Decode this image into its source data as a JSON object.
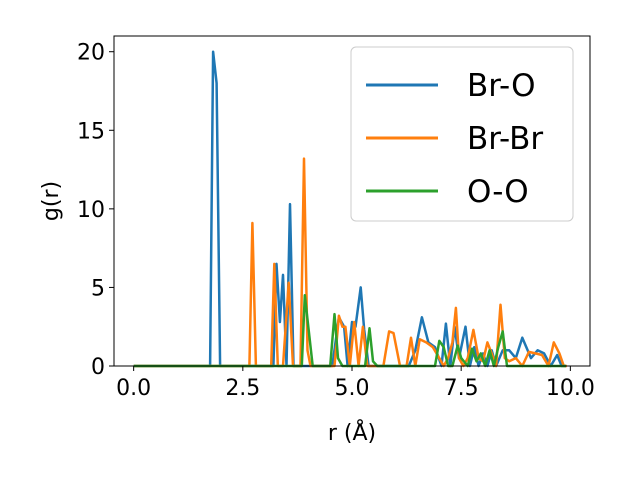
{
  "chart_data": {
    "type": "line",
    "xlabel": "r (Å)",
    "ylabel": "g(r)",
    "xlim": [
      -0.45,
      10.45
    ],
    "ylim": [
      0,
      21
    ],
    "xticks": [
      "0.0",
      "2.5",
      "5.0",
      "7.5",
      "10.0"
    ],
    "yticks": [
      "0",
      "5",
      "10",
      "15",
      "20"
    ],
    "grid": false,
    "legend_position": "top-right",
    "series": [
      {
        "name": "Br-O",
        "color": "#1f77b4",
        "x": [
          0.0,
          1.75,
          1.82,
          1.9,
          1.98,
          2.0,
          2.05,
          3.2,
          3.27,
          3.35,
          3.42,
          3.5,
          3.58,
          3.66,
          3.74,
          3.82,
          4.15,
          4.3,
          4.45,
          4.55,
          4.7,
          4.82,
          4.9,
          5.0,
          5.08,
          5.2,
          5.28,
          5.38,
          5.5,
          5.62,
          6.3,
          6.45,
          6.6,
          6.75,
          6.9,
          7.05,
          7.15,
          7.25,
          7.35,
          7.45,
          7.6,
          7.7,
          7.8,
          7.9,
          8.0,
          8.1,
          8.2,
          8.3,
          8.45,
          8.6,
          8.75,
          8.9,
          9.1,
          9.25,
          9.4,
          9.55,
          9.7,
          9.8,
          9.9
        ],
        "y": [
          0,
          0,
          20,
          18,
          0,
          0,
          0,
          0,
          6.5,
          2.8,
          5.8,
          0,
          10.3,
          0,
          0,
          0,
          0,
          0,
          0,
          0,
          3.1,
          2.5,
          0,
          2.8,
          2.5,
          5.0,
          2.3,
          0,
          0,
          0,
          0,
          1.0,
          3.1,
          1.5,
          1.2,
          0,
          2.7,
          0,
          2.5,
          0.5,
          2.5,
          0,
          1.2,
          0,
          0.8,
          0,
          1.0,
          0,
          1.0,
          1.0,
          0.5,
          1.8,
          0.5,
          1.0,
          0.8,
          0,
          0.7,
          0,
          0
        ]
      },
      {
        "name": "Br-Br",
        "color": "#ff7f0e",
        "x": [
          0.0,
          2.55,
          2.65,
          2.72,
          2.8,
          2.95,
          3.05,
          3.15,
          3.22,
          3.3,
          3.42,
          3.55,
          3.65,
          3.75,
          3.82,
          3.9,
          3.98,
          4.05,
          4.15,
          4.3,
          4.45,
          4.6,
          4.7,
          4.78,
          4.85,
          4.95,
          5.05,
          5.15,
          5.25,
          5.35,
          5.5,
          5.62,
          5.72,
          5.85,
          5.95,
          6.1,
          6.25,
          6.35,
          6.45,
          6.55,
          6.7,
          6.85,
          7.0,
          7.1,
          7.2,
          7.3,
          7.38,
          7.45,
          7.55,
          7.65,
          7.78,
          7.9,
          8.0,
          8.1,
          8.2,
          8.3,
          8.4,
          8.5,
          8.6,
          8.75,
          8.9,
          9.05,
          9.2,
          9.35,
          9.5,
          9.62,
          9.75,
          9.85,
          9.92
        ],
        "y": [
          0,
          0,
          0,
          9.1,
          0,
          0,
          0,
          0,
          6.5,
          0,
          0,
          5.3,
          0,
          0,
          0,
          13.2,
          1.0,
          0,
          0,
          0,
          0,
          0,
          3.2,
          2.5,
          2.5,
          0,
          2.8,
          0,
          2.5,
          0,
          0,
          0,
          0,
          2.2,
          2.1,
          0,
          0,
          1.8,
          0,
          1.7,
          1.5,
          1.2,
          0.5,
          0,
          0.5,
          1.5,
          3.7,
          0.5,
          0,
          0.5,
          2.3,
          0.5,
          0.3,
          1.5,
          0.8,
          0,
          3.9,
          0.5,
          0.3,
          0.5,
          0,
          0.9,
          0.8,
          0.7,
          0,
          1.5,
          0.8,
          0,
          0
        ]
      },
      {
        "name": "O-O",
        "color": "#2ca02c",
        "x": [
          0.0,
          3.85,
          3.92,
          4.0,
          4.1,
          4.5,
          4.6,
          4.68,
          4.78,
          4.9,
          5.3,
          5.4,
          5.48,
          5.58,
          5.7,
          6.9,
          7.0,
          7.1,
          7.2,
          7.3,
          7.42,
          7.5,
          7.65,
          7.75,
          7.85,
          7.95,
          8.05,
          8.15,
          8.25,
          8.35,
          8.45,
          8.55,
          8.65,
          8.8,
          9.0,
          9.4,
          9.9
        ],
        "y": [
          0,
          0,
          4.5,
          2.5,
          0,
          0,
          3.3,
          0.5,
          0,
          0,
          0,
          2.4,
          0.3,
          0,
          0,
          0,
          1.6,
          1.2,
          0,
          0,
          1.3,
          0.5,
          0,
          1.1,
          0.3,
          0.8,
          0,
          1.0,
          0,
          1.2,
          2.2,
          0,
          0,
          0,
          0,
          0,
          0
        ]
      }
    ]
  }
}
